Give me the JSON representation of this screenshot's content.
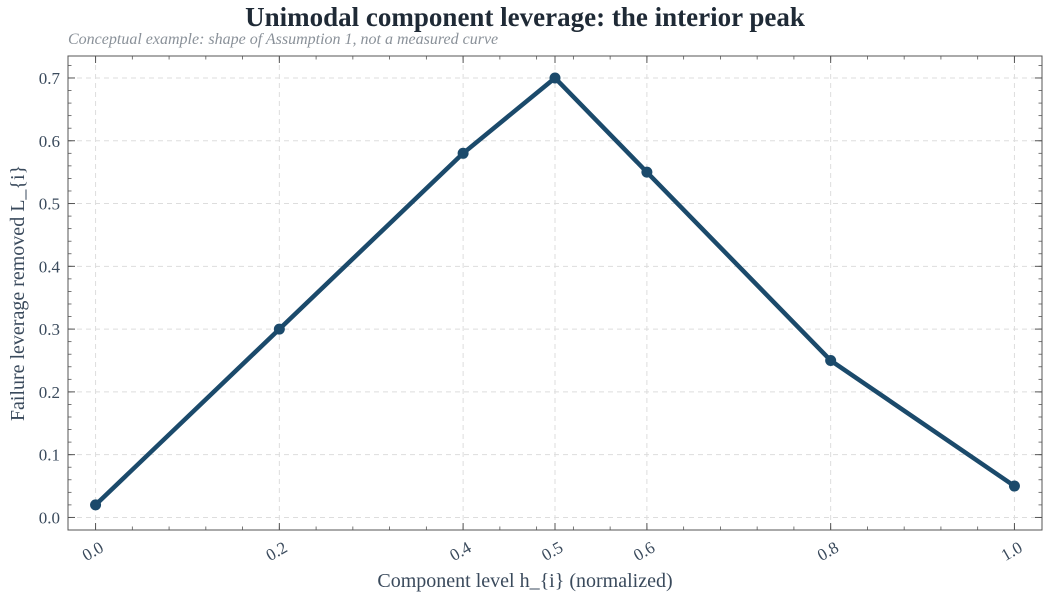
{
  "chart_data": {
    "type": "line",
    "title": "Unimodal component leverage: the interior peak",
    "subtitle": "Conceptual example: shape of Assumption 1, not a measured curve",
    "xlabel": "Component level h_{i} (normalized)",
    "ylabel": "Failure leverage removed L_{i}",
    "x": [
      0.0,
      0.2,
      0.4,
      0.5,
      0.6,
      0.8,
      1.0
    ],
    "x_tick_labels": [
      "0.0",
      "0.2",
      "0.4",
      "0.5",
      "0.6",
      "0.8",
      "1.0"
    ],
    "series": [
      {
        "values": [
          0.02,
          0.3,
          0.58,
          0.7,
          0.55,
          0.25,
          0.05
        ]
      }
    ],
    "yticks": [
      0.0,
      0.1,
      0.2,
      0.3,
      0.4,
      0.5,
      0.6,
      0.7
    ],
    "y_tick_labels": [
      "0.0",
      "0.1",
      "0.2",
      "0.3",
      "0.4",
      "0.5",
      "0.6",
      "0.7"
    ],
    "grid": true,
    "line_color": "#1b4a6b",
    "grid_color": "#dddddd",
    "axis_color": "#555555",
    "text_color": "#3a4a5c"
  }
}
